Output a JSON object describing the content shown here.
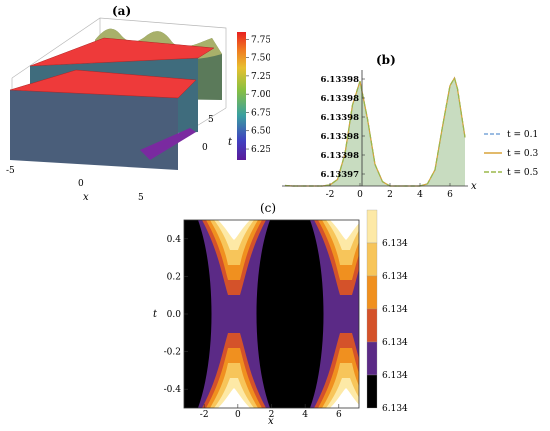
{
  "chart_data": [
    {
      "panel": "(a)",
      "type": "surface3d",
      "xlabel": "x",
      "ylabel": "t",
      "x_ticks": [
        "-5",
        "0",
        "5"
      ],
      "t_ticks": [
        "0",
        "5"
      ],
      "colorbar_ticks": [
        "7.75",
        "7.50",
        "7.25",
        "7.00",
        "6.75",
        "6.50",
        "6.25"
      ],
      "colorbar_range": [
        6.1,
        7.85
      ],
      "colors": {
        "top_plateau": "#ef3b3b",
        "low_floor": "#3b4f9e"
      }
    },
    {
      "panel": "(b)",
      "type": "line",
      "xlabel": "x",
      "ylabel": "",
      "x_ticks": [
        "-2",
        "0",
        "2",
        "4",
        "6"
      ],
      "xlim": [
        -5.2,
        7.2
      ],
      "y_ticks": [
        "6.13398",
        "6.13398",
        "6.13398",
        "6.13398",
        "6.13398",
        "6.13397"
      ],
      "x": [
        -5.0,
        -4.5,
        -4.0,
        -3.5,
        -3.0,
        -2.5,
        -2.0,
        -1.5,
        -1.0,
        -0.5,
        0.0,
        0.5,
        1.0,
        1.5,
        2.0,
        2.5,
        3.0,
        3.5,
        4.0,
        4.5,
        5.0,
        5.5,
        6.0,
        6.3,
        6.5,
        7.0
      ],
      "shape": [
        0.005,
        0.0,
        0.0,
        0.0,
        0.0,
        0.0,
        0.01,
        0.06,
        0.3,
        0.75,
        0.97,
        0.62,
        0.2,
        0.04,
        0.0,
        0.0,
        0.0,
        0.0,
        0.0,
        0.02,
        0.15,
        0.55,
        0.93,
        1.0,
        0.9,
        0.45
      ],
      "series": [
        {
          "name": "t = 0.1",
          "color": "#7aa6d8",
          "dash": "dashed"
        },
        {
          "name": "t = 0.3",
          "color": "#d9a43a",
          "dash": "solid"
        },
        {
          "name": "t = 0.5",
          "color": "#9bb84a",
          "dash": "dashed"
        }
      ],
      "fill_color": "#c8dcc0"
    },
    {
      "panel": "(c)",
      "type": "contour",
      "xlabel": "x",
      "ylabel": "t",
      "x_ticks": [
        "-2",
        "0",
        "2",
        "4",
        "6"
      ],
      "xlim": [
        -3.2,
        7.2
      ],
      "y_ticks": [
        "0.4",
        "0.2",
        "0.0",
        "-0.2",
        "-0.4"
      ],
      "ylim": [
        -0.5,
        0.5
      ],
      "legend_labels": [
        "6.134",
        "6.134",
        "6.134",
        "6.134",
        "6.134",
        "6.134"
      ],
      "legend_colors": [
        "#fde9a6",
        "#f7c55a",
        "#f0901f",
        "#d4522a",
        "#5b2a86",
        "#000000"
      ]
    }
  ]
}
